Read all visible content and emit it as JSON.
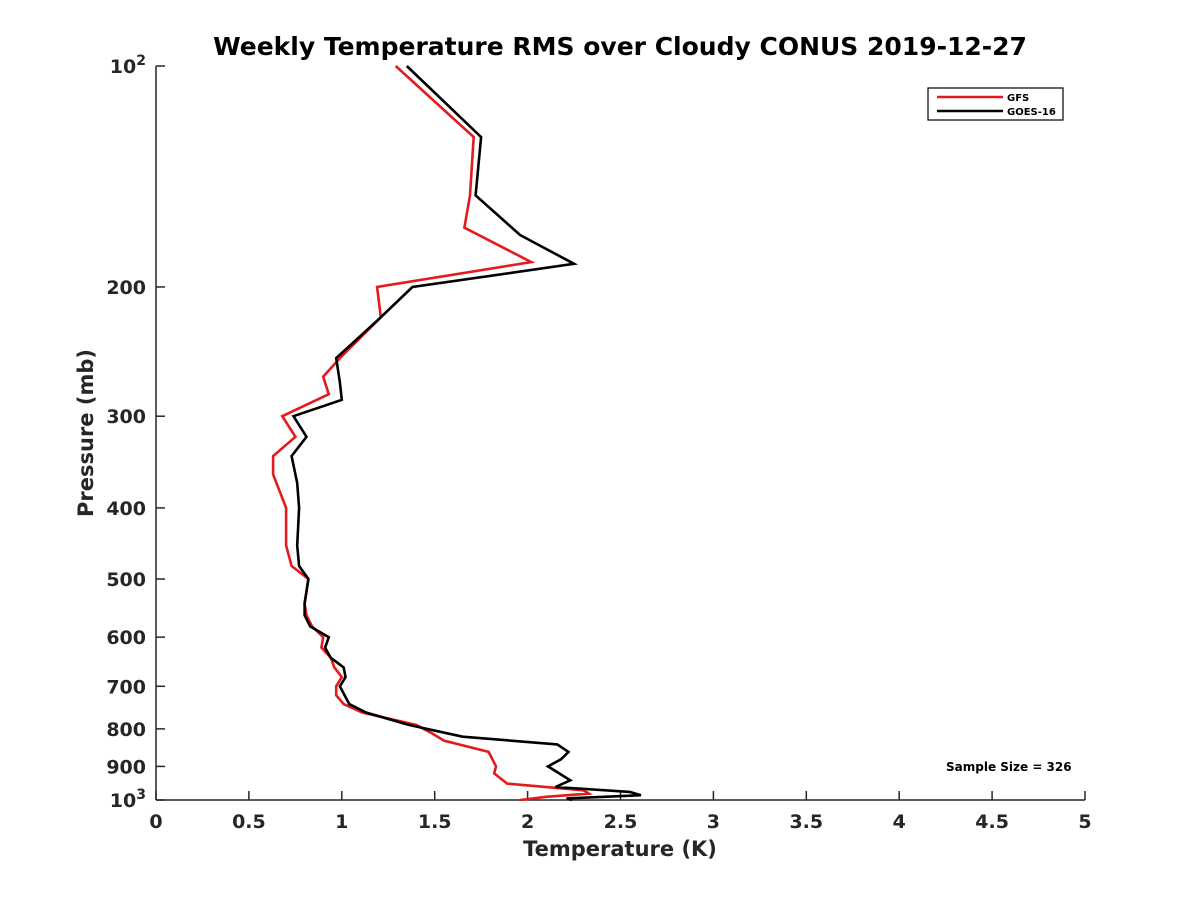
{
  "chart_data": {
    "type": "line",
    "title": "Weekly Temperature RMS over Cloudy CONUS 2019-12-27",
    "xlabel": "Temperature (K)",
    "ylabel": "Pressure (mb)",
    "xlim": [
      0,
      5
    ],
    "ylim": [
      100,
      1000
    ],
    "y_scale": "log",
    "y_reversed": true,
    "grid": false,
    "legend_position": "top-right",
    "x_ticks": [
      0,
      0.5,
      1,
      1.5,
      2,
      2.5,
      3,
      3.5,
      4,
      4.5,
      5
    ],
    "x_tick_labels": [
      "0",
      "0.5",
      "1",
      "1.5",
      "2",
      "2.5",
      "3",
      "3.5",
      "4",
      "4.5",
      "5"
    ],
    "y_ticks": [
      100,
      200,
      300,
      400,
      500,
      600,
      700,
      800,
      900,
      1000
    ],
    "y_tick_labels": [
      {
        "base": "10",
        "exp": "2"
      },
      {
        "base": "200",
        "exp": ""
      },
      {
        "base": "300",
        "exp": ""
      },
      {
        "base": "400",
        "exp": ""
      },
      {
        "base": "500",
        "exp": ""
      },
      {
        "base": "600",
        "exp": ""
      },
      {
        "base": "700",
        "exp": ""
      },
      {
        "base": "800",
        "exp": ""
      },
      {
        "base": "900",
        "exp": ""
      },
      {
        "base": "10",
        "exp": "3"
      }
    ],
    "annotation": "Sample Size = 326",
    "series": [
      {
        "name": "GFS",
        "color": "#e41a1c",
        "points": [
          [
            1.29,
            100
          ],
          [
            1.71,
            125
          ],
          [
            1.69,
            150
          ],
          [
            1.66,
            166
          ],
          [
            2.02,
            185
          ],
          [
            1.19,
            200
          ],
          [
            1.21,
            220
          ],
          [
            0.99,
            250
          ],
          [
            0.9,
            265
          ],
          [
            0.93,
            280
          ],
          [
            0.68,
            300
          ],
          [
            0.75,
            320
          ],
          [
            0.63,
            340
          ],
          [
            0.63,
            360
          ],
          [
            0.7,
            400
          ],
          [
            0.7,
            450
          ],
          [
            0.73,
            480
          ],
          [
            0.82,
            500
          ],
          [
            0.8,
            540
          ],
          [
            0.81,
            560
          ],
          [
            0.84,
            580
          ],
          [
            0.9,
            600
          ],
          [
            0.89,
            620
          ],
          [
            0.94,
            640
          ],
          [
            0.96,
            660
          ],
          [
            1.0,
            680
          ],
          [
            0.97,
            700
          ],
          [
            0.97,
            720
          ],
          [
            1.01,
            740
          ],
          [
            1.11,
            760
          ],
          [
            1.4,
            790
          ],
          [
            1.48,
            810
          ],
          [
            1.55,
            830
          ],
          [
            1.79,
            860
          ],
          [
            1.83,
            900
          ],
          [
            1.82,
            920
          ],
          [
            1.89,
            950
          ],
          [
            2.3,
            970
          ],
          [
            2.33,
            980
          ],
          [
            2.1,
            990
          ],
          [
            1.96,
            1000
          ]
        ]
      },
      {
        "name": "GOES-16",
        "color": "#000000",
        "points": [
          [
            1.35,
            100
          ],
          [
            1.75,
            125
          ],
          [
            1.72,
            150
          ],
          [
            1.96,
            170
          ],
          [
            2.25,
            186
          ],
          [
            1.38,
            200
          ],
          [
            1.21,
            220
          ],
          [
            0.97,
            250
          ],
          [
            0.99,
            270
          ],
          [
            1.0,
            285
          ],
          [
            0.74,
            300
          ],
          [
            0.81,
            320
          ],
          [
            0.73,
            340
          ],
          [
            0.76,
            370
          ],
          [
            0.77,
            400
          ],
          [
            0.76,
            450
          ],
          [
            0.77,
            480
          ],
          [
            0.82,
            500
          ],
          [
            0.8,
            540
          ],
          [
            0.8,
            560
          ],
          [
            0.83,
            580
          ],
          [
            0.93,
            600
          ],
          [
            0.91,
            620
          ],
          [
            0.94,
            640
          ],
          [
            1.01,
            660
          ],
          [
            1.02,
            680
          ],
          [
            0.99,
            700
          ],
          [
            1.04,
            740
          ],
          [
            1.13,
            760
          ],
          [
            1.36,
            790
          ],
          [
            1.65,
            820
          ],
          [
            2.16,
            840
          ],
          [
            2.22,
            860
          ],
          [
            2.18,
            880
          ],
          [
            2.11,
            900
          ],
          [
            2.17,
            920
          ],
          [
            2.23,
            940
          ],
          [
            2.15,
            960
          ],
          [
            2.55,
            975
          ],
          [
            2.61,
            985
          ],
          [
            2.21,
            995
          ],
          [
            2.24,
            1000
          ]
        ]
      }
    ]
  }
}
